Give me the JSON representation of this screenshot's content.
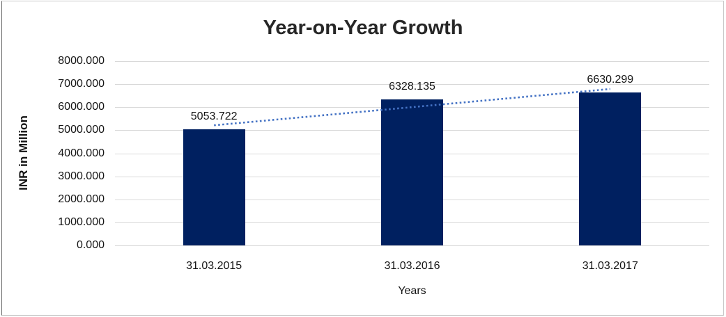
{
  "chart_data": {
    "type": "bar",
    "title": "Year-on-Year Growth",
    "xlabel": "Years",
    "ylabel": "INR in Million",
    "categories": [
      "31.03.2015",
      "31.03.2016",
      "31.03.2017"
    ],
    "values": [
      5053.722,
      6328.135,
      6630.299
    ],
    "data_labels": [
      "5053.722",
      "6328.135",
      "6630.299"
    ],
    "y_ticks": [
      "8000.000",
      "7000.000",
      "6000.000",
      "5000.000",
      "4000.000",
      "3000.000",
      "2000.000",
      "1000.000",
      "0.000"
    ],
    "ylim": [
      0,
      8000
    ],
    "grid": true,
    "legend": "none",
    "trendline": {
      "style": "dotted",
      "shape": "linear",
      "endpoint_values": [
        5215.8,
        6792.3
      ]
    },
    "colors": {
      "bar": "#002060",
      "trendline": "#4472c4",
      "gridline": "#d9d9d9",
      "title": "#262626",
      "text": "#141414"
    }
  }
}
